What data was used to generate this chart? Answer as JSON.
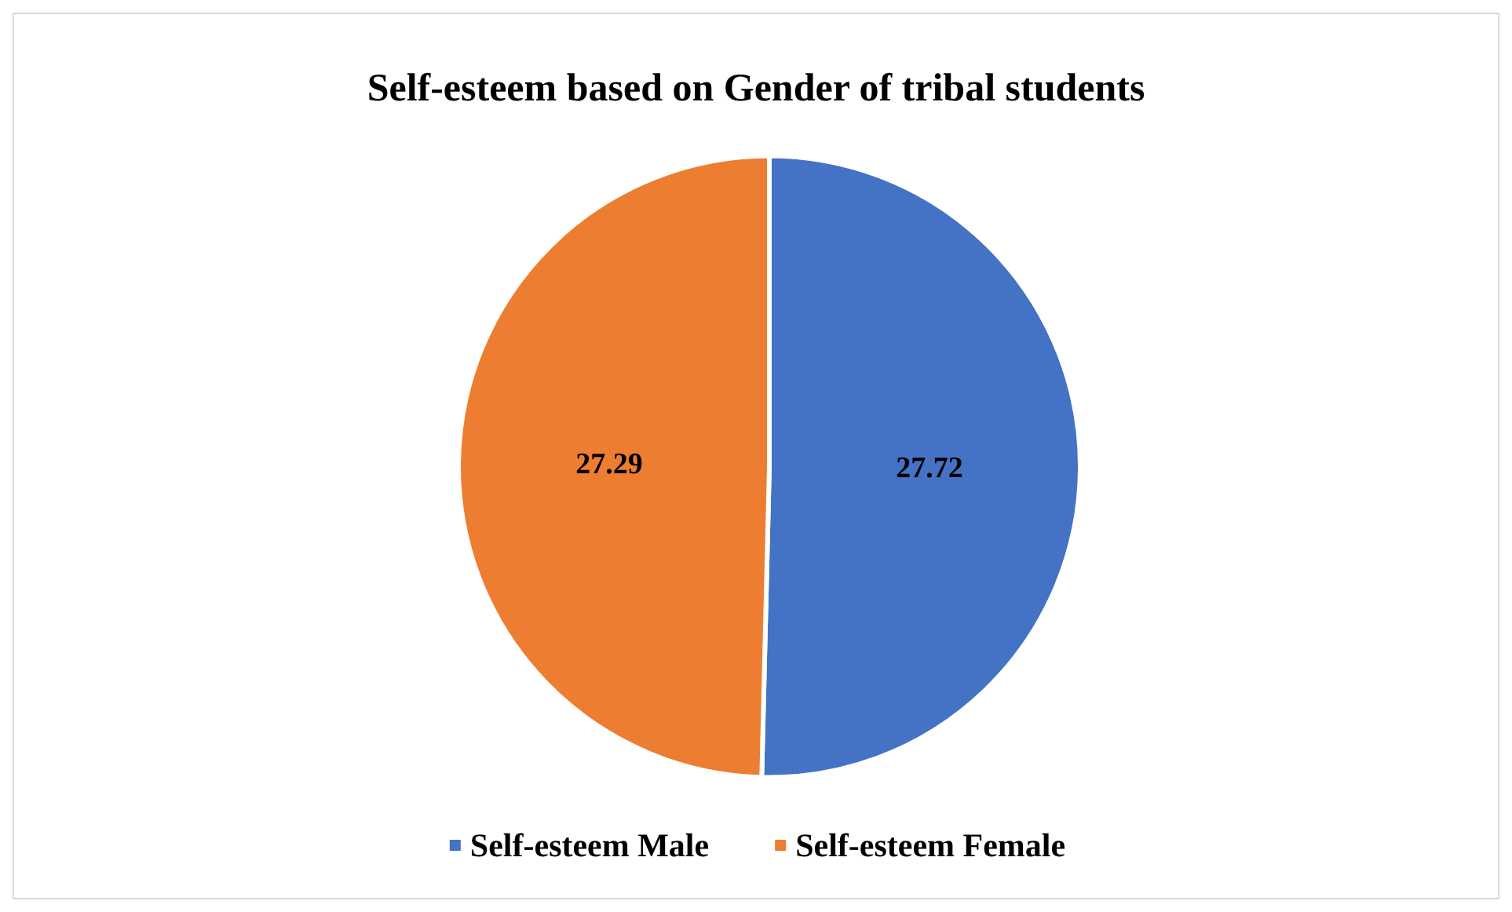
{
  "chart_data": {
    "type": "pie",
    "title": "Self-esteem based on Gender of tribal students",
    "categories": [
      "Self-esteem Male",
      "Self-esteem Female"
    ],
    "values": [
      27.72,
      27.29
    ],
    "colors": [
      "#4472c4",
      "#ed7d31"
    ],
    "data_labels": true,
    "legend": "bottom"
  }
}
